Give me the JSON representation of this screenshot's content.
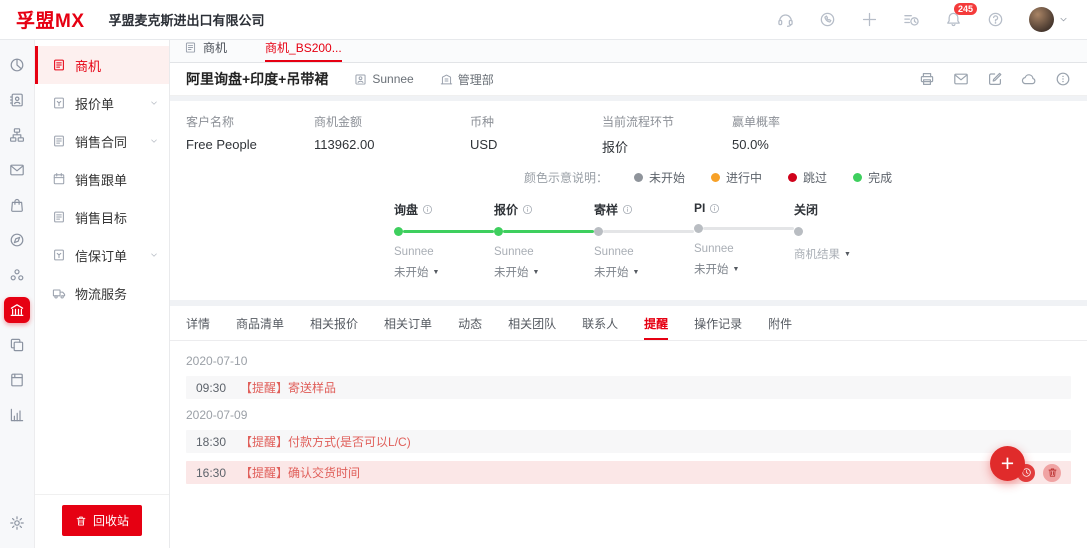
{
  "header": {
    "logo": "孚盟MX",
    "company": "孚盟麦克斯进出口有限公司",
    "notification_count": "245",
    "icons": [
      "headset",
      "chat",
      "plus",
      "history",
      "bell",
      "help"
    ]
  },
  "icon_rail": {
    "items": [
      {
        "icon": "pie",
        "name": "pie-chart"
      },
      {
        "icon": "contacts",
        "name": "address-book"
      },
      {
        "icon": "org",
        "name": "org-chart"
      },
      {
        "icon": "mail",
        "name": "mail"
      },
      {
        "icon": "bag",
        "name": "shopping-bag"
      },
      {
        "icon": "compass",
        "name": "compass"
      },
      {
        "icon": "team",
        "name": "team"
      },
      {
        "icon": "bank",
        "name": "sales-bank",
        "active": true
      },
      {
        "icon": "copy",
        "name": "copy-docs"
      },
      {
        "icon": "notebook",
        "name": "notebook"
      },
      {
        "icon": "barchart",
        "name": "bar-chart"
      },
      {
        "icon": "gear",
        "name": "gear",
        "bottom": true
      }
    ]
  },
  "sidebar": {
    "items": [
      {
        "label": "商机",
        "icon": "doc",
        "active": true
      },
      {
        "label": "报价单",
        "icon": "docquote",
        "expandable": true
      },
      {
        "label": "销售合同",
        "icon": "doc",
        "expandable": true
      },
      {
        "label": "销售跟单",
        "icon": "calendar"
      },
      {
        "label": "销售目标",
        "icon": "doc"
      },
      {
        "label": "信保订单",
        "icon": "docquote",
        "expandable": true
      },
      {
        "label": "物流服务",
        "icon": "truck"
      }
    ],
    "recycle_label": "回收站"
  },
  "doc_tabs": [
    {
      "label": "商机",
      "icon": "doc"
    },
    {
      "label": "商机_BS200...",
      "active": true
    }
  ],
  "detail": {
    "title": "阿里询盘+印度+吊带裙",
    "owner": "Sunnee",
    "department": "管理部",
    "action_icons": [
      "printer",
      "mail",
      "edit",
      "cloud",
      "morecircle"
    ],
    "fields": [
      {
        "label": "客户名称",
        "value": "Free People"
      },
      {
        "label": "商机金额",
        "value": "113962.00"
      },
      {
        "label": "币种",
        "value": "USD"
      },
      {
        "label": "当前流程环节",
        "value": "报价"
      },
      {
        "label": "赢单概率",
        "value": "50.0%"
      }
    ],
    "legend": {
      "label": "颜色示意说明：",
      "items": [
        {
          "label": "未开始",
          "color": "#8f949b"
        },
        {
          "label": "进行中",
          "color": "#f7a128"
        },
        {
          "label": "跳过",
          "color": "#d0021b"
        },
        {
          "label": "完成",
          "color": "#3ecf5e"
        }
      ]
    },
    "steps": [
      {
        "name": "询盘",
        "info": true,
        "state": "done",
        "line": "done",
        "owner": "Sunnee",
        "status": "未开始"
      },
      {
        "name": "报价",
        "info": true,
        "state": "done",
        "line": "done",
        "owner": "Sunnee",
        "status": "未开始"
      },
      {
        "name": "寄样",
        "info": true,
        "state": "pending",
        "line": "pending",
        "owner": "Sunnee",
        "status": "未开始"
      },
      {
        "name": "PI",
        "info": true,
        "state": "pending",
        "line": "pending",
        "owner": "Sunnee",
        "status": "未开始"
      },
      {
        "name": "关闭",
        "info": false,
        "state": "pending",
        "line": null,
        "owner": "商机结果",
        "owner_dropdown": true
      }
    ]
  },
  "detail_tabs": [
    {
      "label": "详情"
    },
    {
      "label": "商品清单"
    },
    {
      "label": "相关报价"
    },
    {
      "label": "相关订单"
    },
    {
      "label": "动态"
    },
    {
      "label": "相关团队"
    },
    {
      "label": "联系人"
    },
    {
      "label": "提醒",
      "active": true
    },
    {
      "label": "操作记录"
    },
    {
      "label": "附件"
    }
  ],
  "reminders": {
    "groups": [
      {
        "date": "2020-07-10",
        "items": [
          {
            "time": "09:30",
            "text": "【提醒】寄送样品",
            "highlight": false
          }
        ]
      },
      {
        "date": "2020-07-09",
        "items": [
          {
            "time": "18:30",
            "text": "【提醒】付款方式(是否可以L/C)",
            "highlight": false
          },
          {
            "time": "16:30",
            "text": "【提醒】确认交货时间",
            "highlight": true
          }
        ]
      }
    ]
  },
  "fab": {
    "label": "+"
  },
  "colors": {
    "accent": "#e60012",
    "step_done": "#3ecf5e",
    "step_pending": "#b9bdc2",
    "line_pending": "#e4e5e7",
    "highlight_row": "#fbe7e7"
  }
}
